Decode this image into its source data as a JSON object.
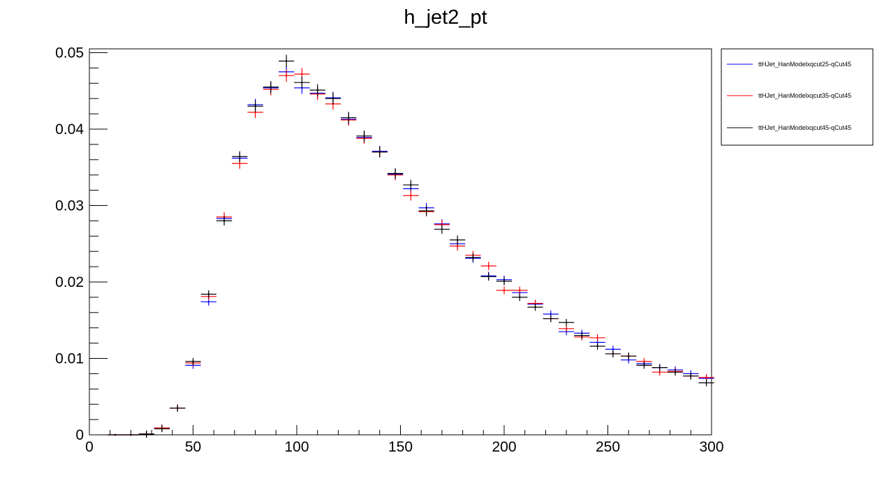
{
  "chart_data": {
    "type": "scatter",
    "title": "h_jet2_pt",
    "xlabel": "",
    "ylabel": "",
    "xlim": [
      0,
      300
    ],
    "ylim": [
      0,
      0.0505
    ],
    "grid": false,
    "legend_position": "top-right, outside plot",
    "x_ticks": [
      "0",
      "50",
      "100",
      "150",
      "200",
      "250",
      "300"
    ],
    "y_ticks": [
      "0",
      "0.01",
      "0.02",
      "0.03",
      "0.04",
      "0.05"
    ],
    "x": [
      12.5,
      20,
      27.5,
      35,
      42.5,
      50,
      57.5,
      65,
      72.5,
      80,
      87.5,
      95,
      102.5,
      110,
      117.5,
      125,
      132.5,
      140,
      147.5,
      155,
      162.5,
      170,
      177.5,
      185,
      192.5,
      200,
      207.5,
      215,
      222.5,
      230,
      237.5,
      245,
      252.5,
      260,
      267.5,
      275,
      282.5,
      290,
      297.5
    ],
    "bin_width": 7.5,
    "series": [
      {
        "name": "ttHJet_HanModelxqcut25-qCut45",
        "color": "#0000ff",
        "values": [
          0.0,
          0.0,
          0.0001,
          0.0009,
          0.0035,
          0.0091,
          0.0174,
          0.0283,
          0.0362,
          0.0432,
          0.0454,
          0.0475,
          0.0454,
          0.0447,
          0.0441,
          0.0413,
          0.0389,
          0.0371,
          0.0341,
          0.0322,
          0.0297,
          0.0276,
          0.025,
          0.0231,
          0.0208,
          0.0203,
          0.0186,
          0.0171,
          0.0158,
          0.0135,
          0.0133,
          0.0121,
          0.0112,
          0.0098,
          0.0093,
          0.0088,
          0.0085,
          0.008,
          0.0074
        ]
      },
      {
        "name": "ttHJet_HanModelxqcut35-qCut45",
        "color": "#ff0000",
        "values": [
          0.0,
          0.0,
          0.0001,
          0.0009,
          0.0035,
          0.0094,
          0.0181,
          0.0285,
          0.0355,
          0.0422,
          0.0452,
          0.047,
          0.0472,
          0.0446,
          0.0433,
          0.0412,
          0.0388,
          0.037,
          0.034,
          0.0313,
          0.0292,
          0.0275,
          0.0247,
          0.0235,
          0.0221,
          0.0189,
          0.0189,
          0.0172,
          0.0152,
          0.0139,
          0.0128,
          0.0127,
          0.0106,
          0.0103,
          0.0096,
          0.0082,
          0.0083,
          0.0077,
          0.0075
        ]
      },
      {
        "name": "ttHJet_HanModelxqcut45-qCut45",
        "color": "#000000",
        "values": [
          0.0,
          0.0,
          0.0001,
          0.0008,
          0.0035,
          0.0096,
          0.0184,
          0.028,
          0.0364,
          0.043,
          0.0455,
          0.0489,
          0.0461,
          0.0451,
          0.044,
          0.0415,
          0.0391,
          0.037,
          0.0342,
          0.0327,
          0.0293,
          0.0269,
          0.0255,
          0.0232,
          0.0207,
          0.0201,
          0.018,
          0.0167,
          0.0152,
          0.0147,
          0.013,
          0.0116,
          0.0106,
          0.0103,
          0.0091,
          0.0088,
          0.0082,
          0.0077,
          0.0068
        ]
      }
    ]
  }
}
